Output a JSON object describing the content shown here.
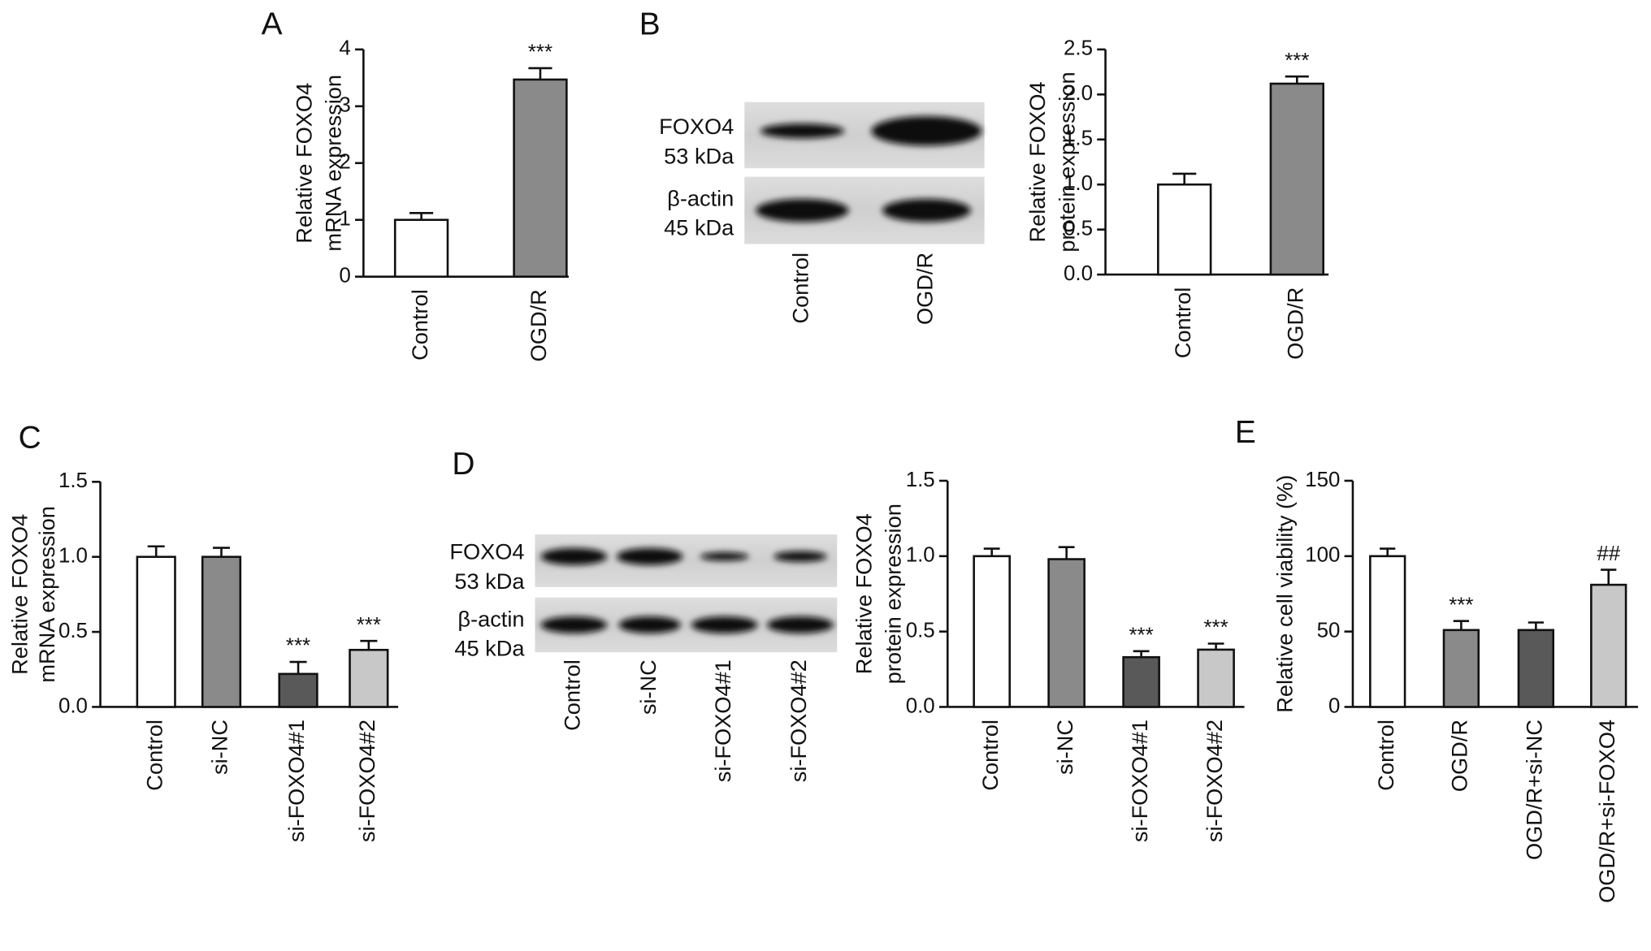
{
  "chart_data": [
    {
      "type": "bar",
      "panel": "A",
      "ylabel": [
        "Relative FOXO4",
        "mRNA expression"
      ],
      "categories": [
        "Control",
        "OGD/R"
      ],
      "values": [
        1.0,
        3.47
      ],
      "errors": [
        0.12,
        0.2
      ],
      "colors": [
        "#ffffff",
        "#8a8a8a"
      ],
      "annotations": [
        null,
        "***"
      ],
      "ylim": [
        0,
        4
      ],
      "yticks": [
        0,
        1,
        2,
        3,
        4
      ]
    },
    {
      "type": "bar",
      "ylabel": [
        "Relative FOXO4",
        "protein expression"
      ],
      "categories": [
        "Control",
        "OGD/R"
      ],
      "values": [
        1.0,
        2.12
      ],
      "errors": [
        0.12,
        0.08
      ],
      "colors": [
        "#ffffff",
        "#8a8a8a"
      ],
      "annotations": [
        null,
        "***"
      ],
      "ylim": [
        0,
        2.5
      ],
      "yticks": [
        {
          "value": 0,
          "label": "0.0"
        },
        {
          "value": 0.5,
          "label": "0.5"
        },
        {
          "value": 1,
          "label": "1.0"
        },
        {
          "value": 1.5,
          "label": "1.5"
        },
        {
          "value": 2,
          "label": "2.0"
        },
        {
          "value": 2.5,
          "label": "2.5"
        }
      ]
    },
    {
      "type": "bar",
      "panel": "C",
      "ylabel": [
        "Relative FOXO4",
        "mRNA expression"
      ],
      "categories": [
        "Control",
        "si-NC",
        "si-FOXO4#1",
        "si-FOXO4#2"
      ],
      "values": [
        1.0,
        1.0,
        0.22,
        0.38
      ],
      "errors": [
        0.07,
        0.06,
        0.08,
        0.06
      ],
      "colors": [
        "#ffffff",
        "#8a8a8a",
        "#595959",
        "#c8c8c8"
      ],
      "annotations": [
        null,
        null,
        "***",
        "***"
      ],
      "ylim": [
        0,
        1.5
      ],
      "yticks": [
        {
          "value": 0,
          "label": "0.0"
        },
        {
          "value": 0.5,
          "label": "0.5"
        },
        {
          "value": 1,
          "label": "1.0"
        },
        {
          "value": 1.5,
          "label": "1.5"
        }
      ]
    },
    {
      "type": "bar",
      "ylabel": [
        "Relative FOXO4",
        "protein expression"
      ],
      "categories": [
        "Control",
        "si-NC",
        "si-FOXO4#1",
        "si-FOXO4#2"
      ],
      "values": [
        1.0,
        0.98,
        0.33,
        0.38
      ],
      "errors": [
        0.05,
        0.08,
        0.04,
        0.04
      ],
      "colors": [
        "#ffffff",
        "#8a8a8a",
        "#595959",
        "#c8c8c8"
      ],
      "annotations": [
        null,
        null,
        "***",
        "***"
      ],
      "ylim": [
        0,
        1.5
      ],
      "yticks": [
        {
          "value": 0,
          "label": "0.0"
        },
        {
          "value": 0.5,
          "label": "0.5"
        },
        {
          "value": 1,
          "label": "1.0"
        },
        {
          "value": 1.5,
          "label": "1.5"
        }
      ]
    },
    {
      "type": "bar",
      "panel": "E",
      "ylabel": [
        "Relative cell viability (%)"
      ],
      "categories": [
        "Control",
        "OGD/R",
        "OGD/R+si-NC",
        "OGD/R+si-FOXO4"
      ],
      "values": [
        100,
        51,
        51,
        81
      ],
      "errors": [
        5,
        6,
        5,
        10
      ],
      "colors": [
        "#ffffff",
        "#8a8a8a",
        "#595959",
        "#c8c8c8"
      ],
      "annotations": [
        null,
        "***",
        null,
        "##"
      ],
      "ylim": [
        0,
        150
      ],
      "yticks": [
        0,
        50,
        100,
        150
      ]
    }
  ],
  "blots": [
    {
      "panel": "B",
      "rows": [
        {
          "label": "FOXO4",
          "size": "53 kDa"
        },
        {
          "label": "β-actin",
          "size": "45 kDa"
        }
      ],
      "lanes": [
        "Control",
        "OGD/R"
      ]
    },
    {
      "panel": "D",
      "rows": [
        {
          "label": "FOXO4",
          "size": "53 kDa"
        },
        {
          "label": "β-actin",
          "size": "45 kDa"
        }
      ],
      "lanes": [
        "Control",
        "si-NC",
        "si-FOXO4#1",
        "si-FOXO4#2"
      ]
    }
  ]
}
